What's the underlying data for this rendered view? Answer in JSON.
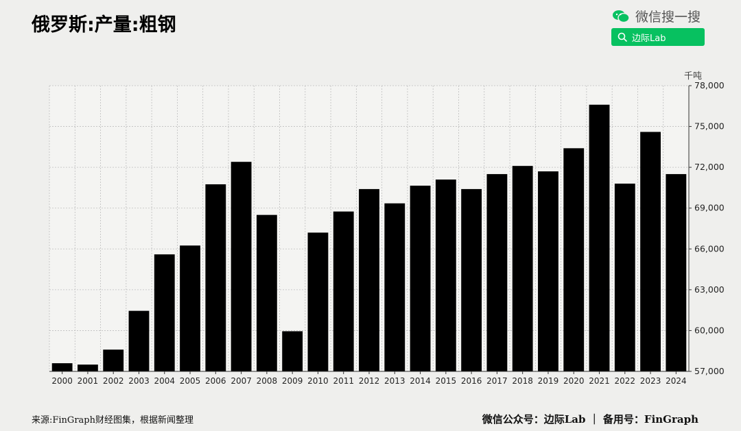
{
  "header": {
    "title": "俄罗斯:产量:粗钢",
    "wechat_label": "微信搜一搜",
    "search_text": "边际Lab"
  },
  "footer": {
    "source": "来源:FinGraph财经图集，根据新闻整理",
    "account": "微信公众号：边际Lab ｜ 备用号：FinGraph"
  },
  "colors": {
    "bar": "#000000",
    "background": "#efefed",
    "wechat_green": "#07c160"
  },
  "chart_data": {
    "type": "bar",
    "title": "俄罗斯:产量:粗钢",
    "unit": "千吨",
    "categories": [
      "2000",
      "2001",
      "2002",
      "2003",
      "2004",
      "2005",
      "2006",
      "2007",
      "2008",
      "2009",
      "2010",
      "2011",
      "2012",
      "2013",
      "2014",
      "2015",
      "2016",
      "2017",
      "2018",
      "2019",
      "2020",
      "2021",
      "2022",
      "2023",
      "2024"
    ],
    "values": [
      57600,
      57500,
      58600,
      61450,
      65600,
      66250,
      70750,
      72400,
      68500,
      59950,
      67200,
      68750,
      70400,
      69350,
      70650,
      71100,
      70400,
      71500,
      72100,
      71700,
      73400,
      76600,
      70800,
      74600,
      71500
    ],
    "ylim": [
      57000,
      78000
    ],
    "yticks": [
      57000,
      60000,
      63000,
      66000,
      69000,
      72000,
      75000,
      78000
    ],
    "ytick_labels": [
      "57,000",
      "60,000",
      "63,000",
      "66,000",
      "69,000",
      "72,000",
      "75,000",
      "78,000"
    ],
    "grid": true,
    "y_axis_side": "right"
  }
}
